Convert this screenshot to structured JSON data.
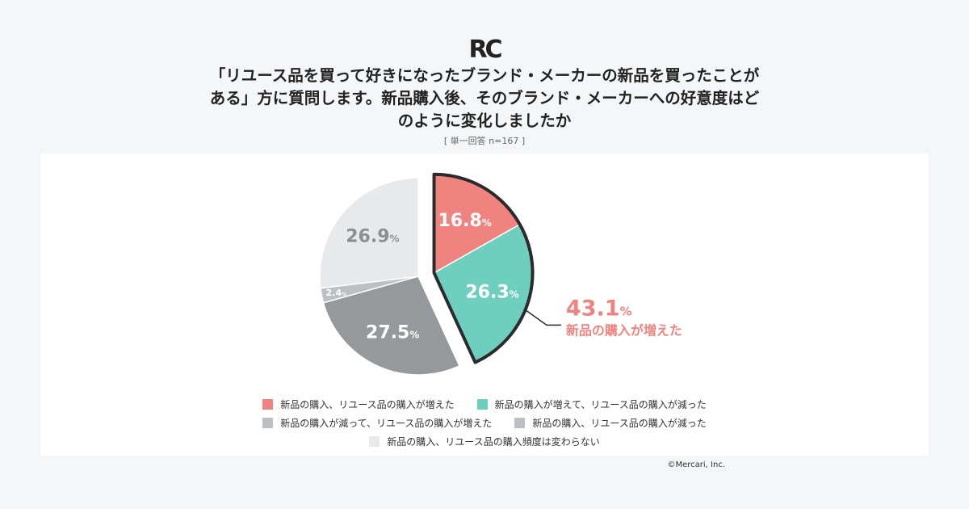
{
  "logo_text": "RC",
  "title": "「リユース品を買って好きになったブランド・メーカーの新品を買ったことがある」方に質問します。新品購入後、そのブランド・メーカーへの好意度はどのように変化しましたか",
  "subtitle": "[ 単一回答 n=167 ]",
  "copyright": "©Mercari, Inc.",
  "chart_data": {
    "type": "pie",
    "unit": "%",
    "slices": [
      {
        "label": "新品の購入、リユース品の購入が増えた",
        "value": 16.8,
        "display": "16.8",
        "color": "#f0837f",
        "exploded": true
      },
      {
        "label": "新品の購入が増えて、リユース品の購入が減った",
        "value": 26.3,
        "display": "26.3",
        "color": "#6fcfbf",
        "exploded": true
      },
      {
        "label": "新品の購入が減って、リユース品の購入が増えた",
        "value": 27.5,
        "display": "27.5",
        "color": "#96999c",
        "exploded": false
      },
      {
        "label": "新品の購入、リユース品の購入が減った",
        "value": 2.4,
        "display": "2.4",
        "color": "#bcc0c3",
        "exploded": false
      },
      {
        "label": "新品の購入、リユース品の購入頻度は変わらない",
        "value": 26.9,
        "display": "26.9",
        "color": "#e8e9ea",
        "exploded": false
      }
    ],
    "annotation": {
      "value": "43.1",
      "unit": "%",
      "text": "新品の購入が増えた",
      "color": "#f0837f"
    }
  }
}
